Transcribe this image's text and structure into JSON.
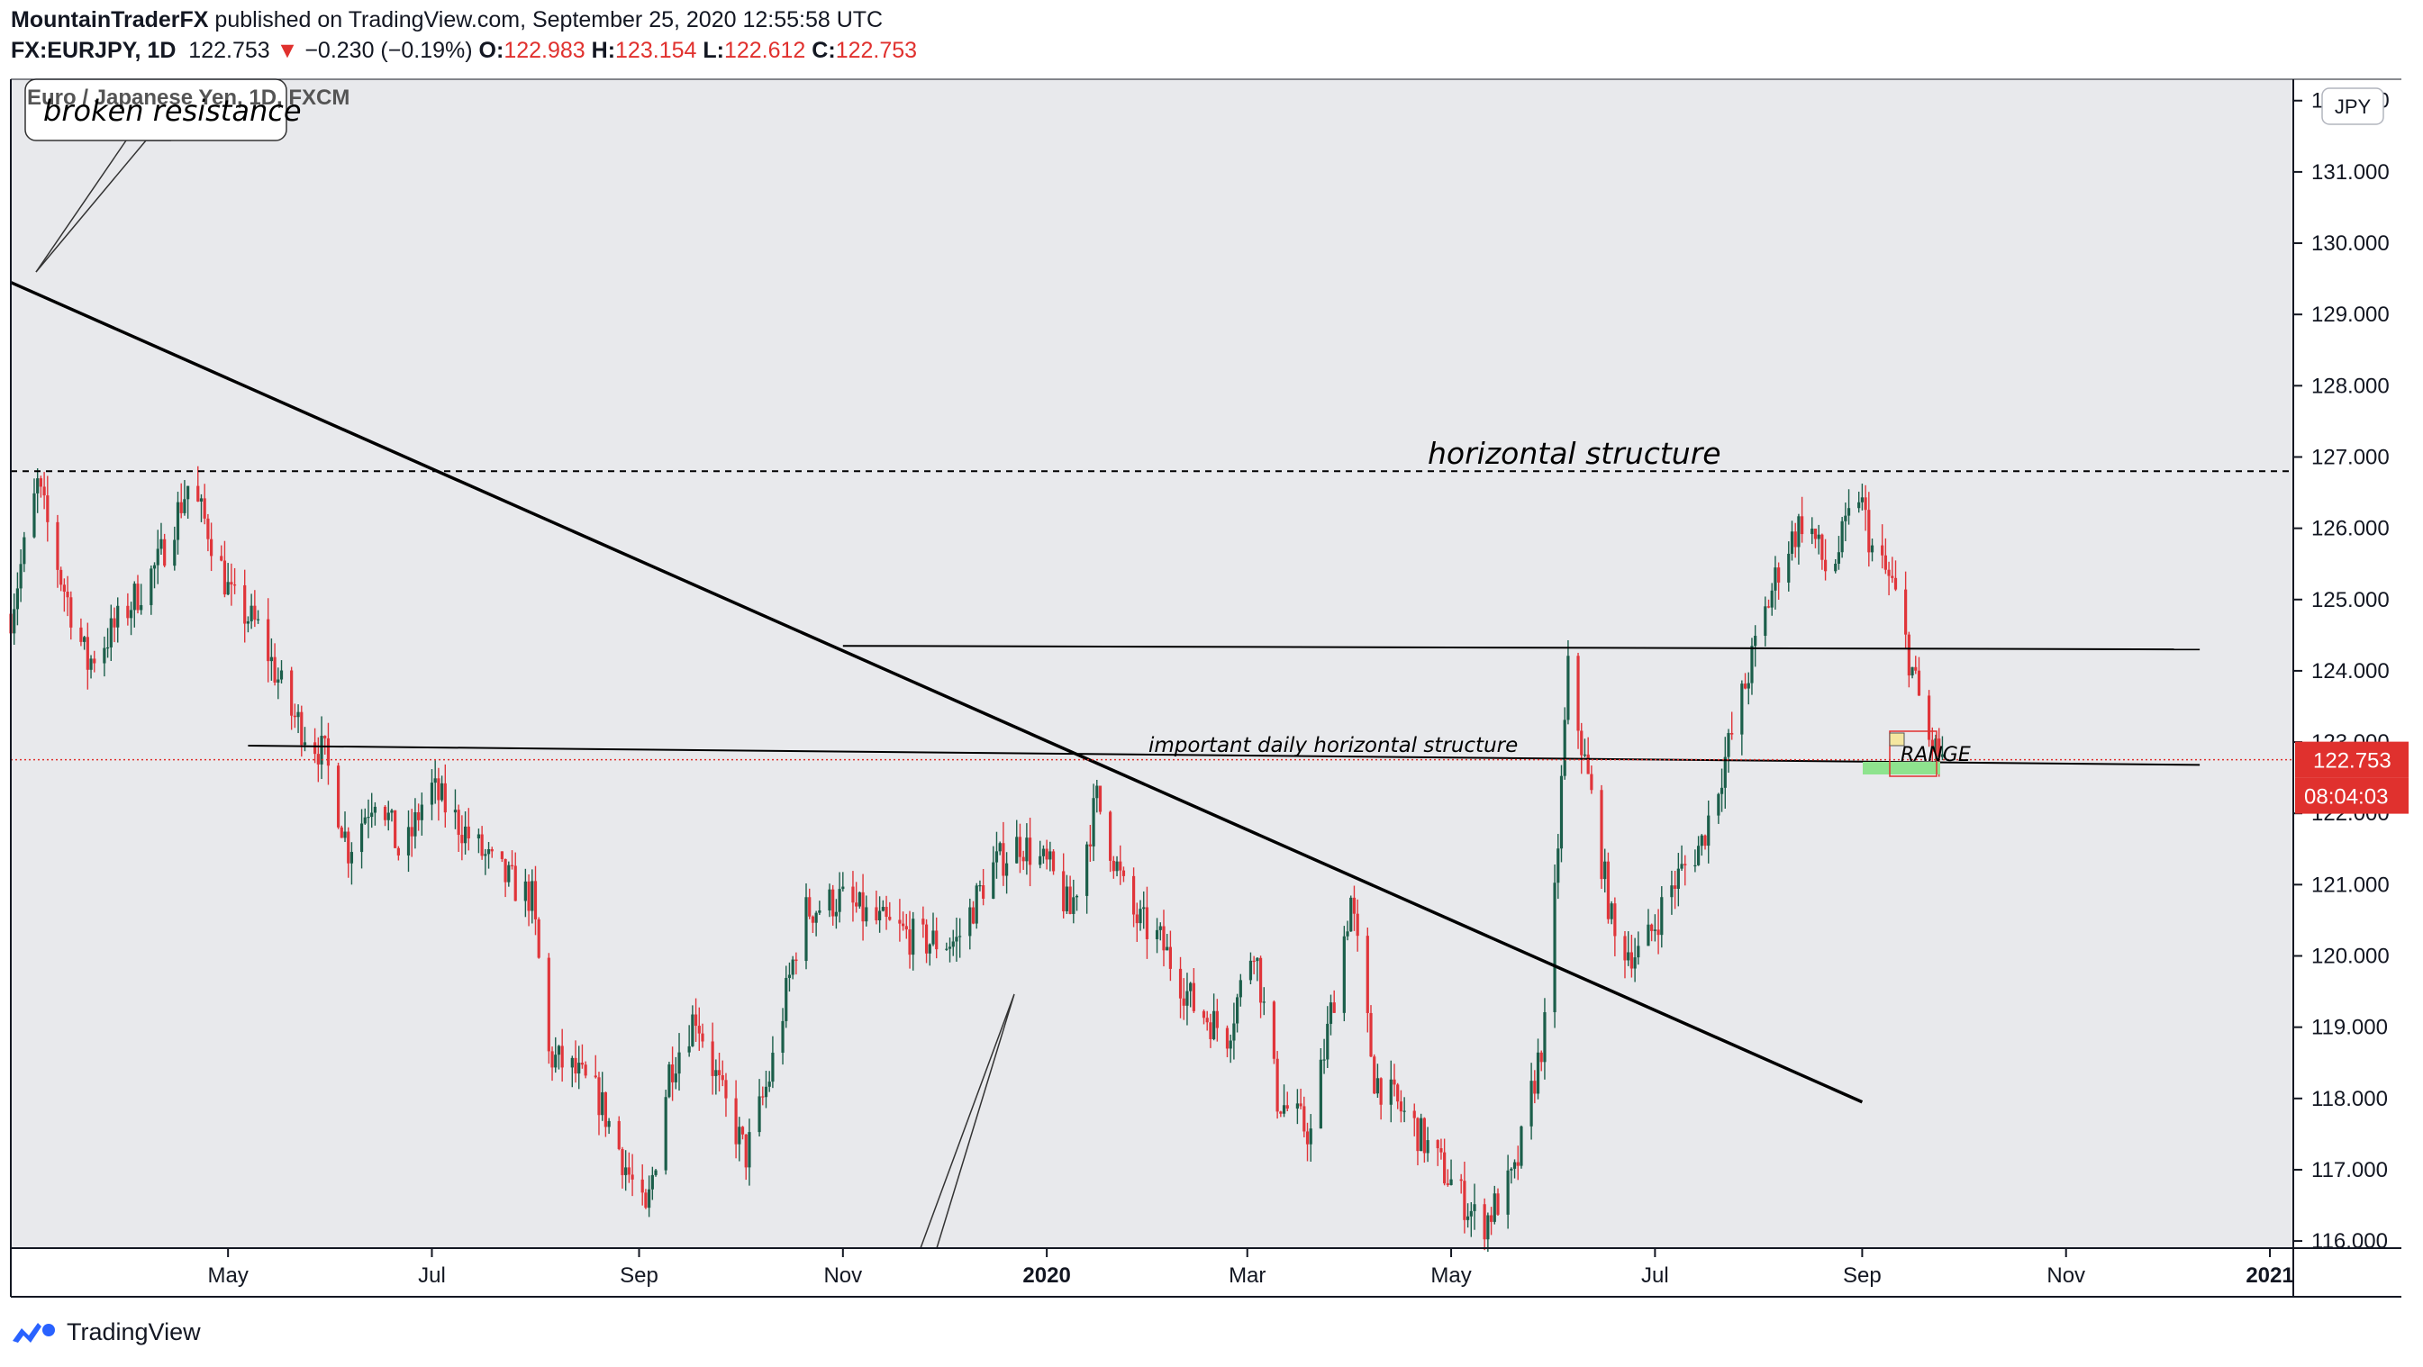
{
  "header": {
    "author": "MountainTraderFX",
    "published_text": "published on TradingView.com, September 25, 2020 12:55:58 UTC",
    "symbol": "FX:EURJPY, 1D",
    "last": "122.753",
    "change_arrow": "▼",
    "change": "−0.230 (−0.19%)",
    "o_label": "O:",
    "o": "122.983",
    "h_label": "H:",
    "h": "123.154",
    "l_label": "L:",
    "l": "122.612",
    "c_label": "C:",
    "c": "122.753"
  },
  "chart_title": "Euro / Japanese Yen, 1D, FXCM",
  "currency_badge": "JPY",
  "last_price_label": "122.753",
  "countdown_label": "08:04:03",
  "footer_brand": "TradingView",
  "annotations": {
    "callout": "broken resistance",
    "horizontal": "horizontal structure",
    "daily": "important daily horizontal structure",
    "range": "RANGE"
  },
  "colors": {
    "up": "#1b5e4a",
    "down": "#e0353a",
    "pane_bg": "#e8e9ec",
    "price_tag": "#e0312e"
  },
  "chart_data": {
    "type": "candlestick",
    "instrument": "EURJPY",
    "timeframe": "1D",
    "x_ticks": [
      "May",
      "Jul",
      "Sep",
      "Nov",
      "2020",
      "Mar",
      "May",
      "Jul",
      "Sep",
      "Nov",
      "2021"
    ],
    "x_tick_dates": [
      "2019-05-01",
      "2019-07-01",
      "2019-09-01",
      "2019-11-01",
      "2020-01-01",
      "2020-03-01",
      "2020-05-01",
      "2020-07-01",
      "2020-09-01",
      "2020-11-01",
      "2021-01-01"
    ],
    "y_ticks": [
      116,
      117,
      118,
      119,
      120,
      121,
      122,
      123,
      124,
      125,
      126,
      127,
      128,
      129,
      130,
      131,
      132
    ],
    "y_range": [
      115.9,
      132.3
    ],
    "x_range": [
      "2019-02-25",
      "2021-01-08"
    ],
    "last_price": 122.753,
    "price_path": [
      {
        "date": "2019-02-25",
        "price": 124.8
      },
      {
        "date": "2019-03-05",
        "price": 126.6
      },
      {
        "date": "2019-03-12",
        "price": 125.3
      },
      {
        "date": "2019-03-20",
        "price": 124.1
      },
      {
        "date": "2019-03-28",
        "price": 124.6
      },
      {
        "date": "2019-04-10",
        "price": 125.5
      },
      {
        "date": "2019-04-19",
        "price": 126.6
      },
      {
        "date": "2019-04-25",
        "price": 126.0
      },
      {
        "date": "2019-05-02",
        "price": 125.0
      },
      {
        "date": "2019-05-10",
        "price": 124.6
      },
      {
        "date": "2019-05-20",
        "price": 123.4
      },
      {
        "date": "2019-05-30",
        "price": 122.8
      },
      {
        "date": "2019-06-06",
        "price": 121.5
      },
      {
        "date": "2019-06-15",
        "price": 122.4
      },
      {
        "date": "2019-06-22",
        "price": 121.3
      },
      {
        "date": "2019-06-30",
        "price": 122.4
      },
      {
        "date": "2019-07-10",
        "price": 121.8
      },
      {
        "date": "2019-07-20",
        "price": 121.2
      },
      {
        "date": "2019-07-31",
        "price": 120.8
      },
      {
        "date": "2019-08-05",
        "price": 118.6
      },
      {
        "date": "2019-08-12",
        "price": 118.4
      },
      {
        "date": "2019-08-20",
        "price": 118.0
      },
      {
        "date": "2019-08-26",
        "price": 117.3
      },
      {
        "date": "2019-09-03",
        "price": 116.3
      },
      {
        "date": "2019-09-10",
        "price": 118.4
      },
      {
        "date": "2019-09-18",
        "price": 119.2
      },
      {
        "date": "2019-09-26",
        "price": 118.0
      },
      {
        "date": "2019-10-03",
        "price": 117.2
      },
      {
        "date": "2019-10-10",
        "price": 118.3
      },
      {
        "date": "2019-10-20",
        "price": 120.6
      },
      {
        "date": "2019-10-31",
        "price": 120.8
      },
      {
        "date": "2019-11-10",
        "price": 120.5
      },
      {
        "date": "2019-11-25",
        "price": 120.2
      },
      {
        "date": "2019-12-05",
        "price": 120.2
      },
      {
        "date": "2019-12-15",
        "price": 121.2
      },
      {
        "date": "2019-12-24",
        "price": 121.6
      },
      {
        "date": "2020-01-02",
        "price": 121.2
      },
      {
        "date": "2020-01-08",
        "price": 120.6
      },
      {
        "date": "2020-01-16",
        "price": 122.2
      },
      {
        "date": "2020-01-26",
        "price": 120.6
      },
      {
        "date": "2020-02-04",
        "price": 120.2
      },
      {
        "date": "2020-02-14",
        "price": 119.3
      },
      {
        "date": "2020-02-24",
        "price": 118.9
      },
      {
        "date": "2020-03-03",
        "price": 120.2
      },
      {
        "date": "2020-03-10",
        "price": 118.0
      },
      {
        "date": "2020-03-20",
        "price": 117.5
      },
      {
        "date": "2020-03-26",
        "price": 119.2
      },
      {
        "date": "2020-04-01",
        "price": 120.8
      },
      {
        "date": "2020-04-08",
        "price": 118.3
      },
      {
        "date": "2020-04-20",
        "price": 117.6
      },
      {
        "date": "2020-04-30",
        "price": 116.9
      },
      {
        "date": "2020-05-10",
        "price": 116.2
      },
      {
        "date": "2020-05-20",
        "price": 116.9
      },
      {
        "date": "2020-05-30",
        "price": 119.2
      },
      {
        "date": "2020-06-05",
        "price": 124.0
      },
      {
        "date": "2020-06-12",
        "price": 122.2
      },
      {
        "date": "2020-06-19",
        "price": 120.2
      },
      {
        "date": "2020-06-27",
        "price": 120.0
      },
      {
        "date": "2020-07-05",
        "price": 120.9
      },
      {
        "date": "2020-07-15",
        "price": 121.6
      },
      {
        "date": "2020-07-24",
        "price": 123.1
      },
      {
        "date": "2020-08-01",
        "price": 124.5
      },
      {
        "date": "2020-08-08",
        "price": 125.6
      },
      {
        "date": "2020-08-15",
        "price": 126.2
      },
      {
        "date": "2020-08-22",
        "price": 125.3
      },
      {
        "date": "2020-08-31",
        "price": 126.5
      },
      {
        "date": "2020-09-04",
        "price": 125.7
      },
      {
        "date": "2020-09-10",
        "price": 125.2
      },
      {
        "date": "2020-09-15",
        "price": 124.2
      },
      {
        "date": "2020-09-21",
        "price": 123.0
      },
      {
        "date": "2020-09-25",
        "price": 122.753
      }
    ],
    "lines": [
      {
        "kind": "trendline",
        "from": {
          "date": "2019-02-25",
          "price": 129.45
        },
        "to": {
          "date": "2020-09-01",
          "price": 117.95
        }
      },
      {
        "kind": "dashed-horizontal",
        "price": 126.8
      },
      {
        "kind": "horizontal",
        "from": {
          "date": "2019-11-01",
          "price": 124.35
        },
        "to": {
          "date": "2020-12-11",
          "price": 124.3
        }
      },
      {
        "kind": "horizontal",
        "from": {
          "date": "2019-05-07",
          "price": 122.95
        },
        "to": {
          "date": "2020-12-11",
          "price": 122.68
        }
      }
    ]
  }
}
